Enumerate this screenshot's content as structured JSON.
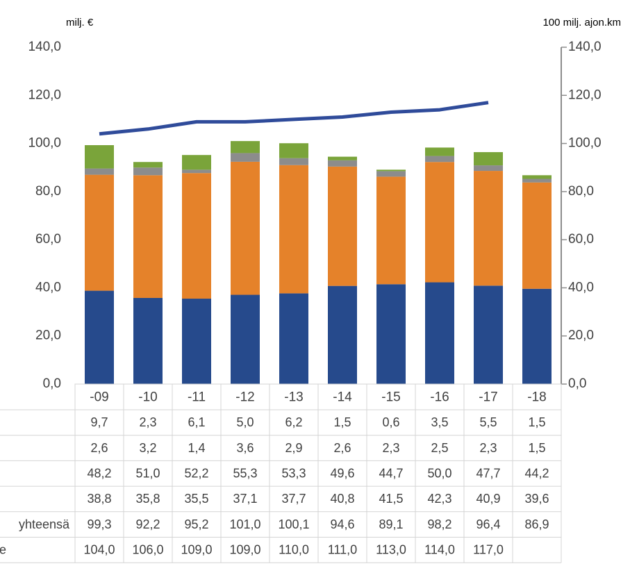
{
  "chart_data": {
    "type": "bar",
    "stacked": true,
    "y_label": "milj. €",
    "y2_label": "100 milj. ajon.km",
    "categories": [
      "-09",
      "-10",
      "-11",
      "-12",
      "-13",
      "-14",
      "-15",
      "-16",
      "-17",
      "-18"
    ],
    "series": [
      {
        "color": "#264a8c",
        "values": [
          38.8,
          35.8,
          35.5,
          37.1,
          37.7,
          40.8,
          41.5,
          42.3,
          40.9,
          39.6
        ],
        "value_labels": [
          "38,8",
          "35,8",
          "35,5",
          "37,1",
          "37,7",
          "40,8",
          "41,5",
          "42,3",
          "40,9",
          "39,6"
        ]
      },
      {
        "color": "#e5822a",
        "values": [
          48.2,
          51.0,
          52.2,
          55.3,
          53.3,
          49.6,
          44.7,
          50.0,
          47.7,
          44.2
        ],
        "value_labels": [
          "48,2",
          "51,0",
          "52,2",
          "55,3",
          "53,3",
          "49,6",
          "44,7",
          "50,0",
          "47,7",
          "44,2"
        ]
      },
      {
        "color": "#8c8c8c",
        "values": [
          2.6,
          3.2,
          1.4,
          3.6,
          2.9,
          2.6,
          2.3,
          2.5,
          2.3,
          1.5
        ],
        "value_labels": [
          "2,6",
          "3,2",
          "1,4",
          "3,6",
          "2,9",
          "2,6",
          "2,3",
          "2,5",
          "2,3",
          "1,5"
        ]
      },
      {
        "color": "#7aa43a",
        "values": [
          9.7,
          2.3,
          6.1,
          5.0,
          6.2,
          1.5,
          0.6,
          3.5,
          5.5,
          1.5
        ],
        "value_labels": [
          "9,7",
          "2,3",
          "6,1",
          "5,0",
          "6,2",
          "1,5",
          "0,6",
          "3,5",
          "5,5",
          "1,5"
        ]
      },
      {
        "name": "e",
        "type": "line",
        "axis": "y2",
        "color": "#2f4b9a",
        "values": [
          104.0,
          106.0,
          109.0,
          109.0,
          110.0,
          111.0,
          113.0,
          114.0,
          117.0,
          null
        ],
        "value_labels": [
          "104,0",
          "106,0",
          "109,0",
          "109,0",
          "110,0",
          "111,0",
          "113,0",
          "114,0",
          "117,0",
          null
        ]
      }
    ],
    "totals": {
      "name": "yhteensä",
      "values": [
        99.3,
        92.2,
        95.2,
        101.0,
        100.1,
        94.6,
        89.1,
        98.2,
        96.4,
        86.9
      ],
      "value_labels": [
        "99,3",
        "92,2",
        "95,2",
        "101,0",
        "100,1",
        "94,6",
        "89,1",
        "98,2",
        "96,4",
        "86,9"
      ]
    },
    "ylim": [
      0,
      140
    ],
    "yticks": [
      {
        "value": 0,
        "label": "0,0"
      },
      {
        "value": 20,
        "label": "20,0"
      },
      {
        "value": 40,
        "label": "40,0"
      },
      {
        "value": 60,
        "label": "60,0"
      },
      {
        "value": 80,
        "label": "80,0"
      },
      {
        "value": 100,
        "label": "100,0"
      },
      {
        "value": 120,
        "label": "120,0"
      },
      {
        "value": 140,
        "label": "140,0"
      }
    ],
    "y2lim": [
      0,
      140
    ],
    "y2ticks": [
      {
        "value": 0,
        "label": "0,0"
      },
      {
        "value": 20,
        "label": "20,0"
      },
      {
        "value": 40,
        "label": "40,0"
      },
      {
        "value": 60,
        "label": "60,0"
      },
      {
        "value": 80,
        "label": "80,0"
      },
      {
        "value": 100,
        "label": "100,0"
      },
      {
        "value": 120,
        "label": "120,0"
      },
      {
        "value": 140,
        "label": "140,0"
      }
    ]
  }
}
